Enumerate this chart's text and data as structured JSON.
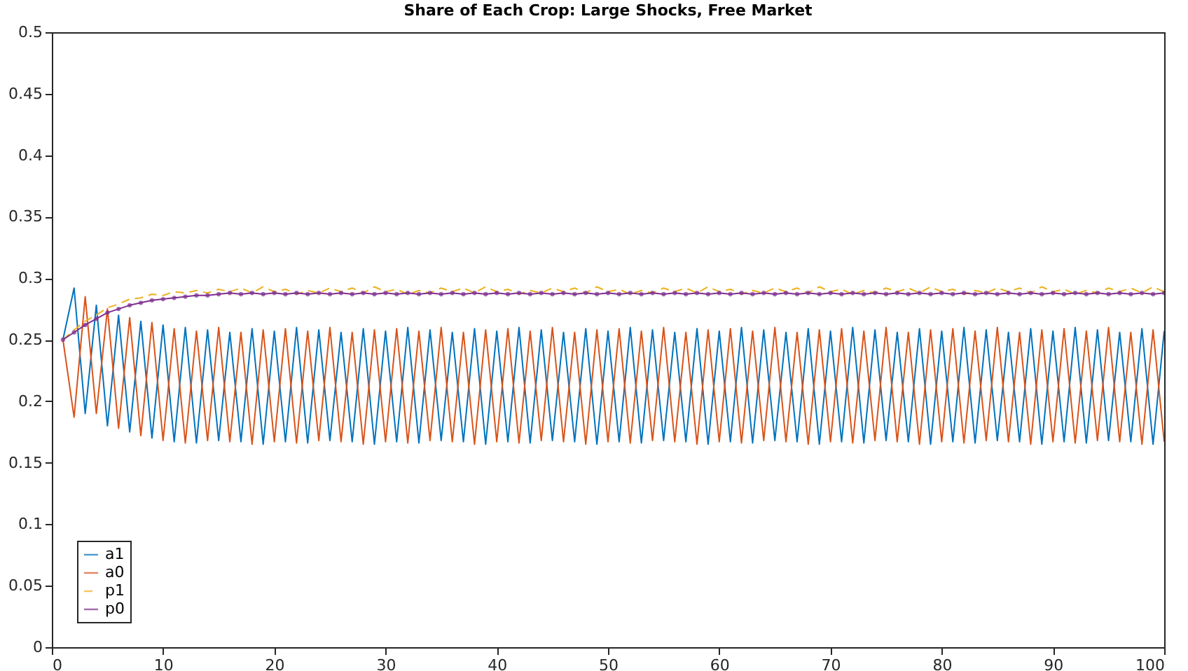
{
  "chart_data": {
    "type": "line",
    "title": "Share of Each Crop: Large Shocks, Free Market",
    "x": [
      1,
      2,
      3,
      4,
      5,
      6,
      7,
      8,
      9,
      10,
      11,
      12,
      13,
      14,
      15,
      16,
      17,
      18,
      19,
      20,
      21,
      22,
      23,
      24,
      25,
      26,
      27,
      28,
      29,
      30,
      31,
      32,
      33,
      34,
      35,
      36,
      37,
      38,
      39,
      40,
      41,
      42,
      43,
      44,
      45,
      46,
      47,
      48,
      49,
      50,
      51,
      52,
      53,
      54,
      55,
      56,
      57,
      58,
      59,
      60,
      61,
      62,
      63,
      64,
      65,
      66,
      67,
      68,
      69,
      70,
      71,
      72,
      73,
      74,
      75,
      76,
      77,
      78,
      79,
      80,
      81,
      82,
      83,
      84,
      85,
      86,
      87,
      88,
      89,
      90,
      91,
      92,
      93,
      94,
      95,
      96,
      97,
      98,
      99,
      100
    ],
    "series": [
      {
        "name": "a1",
        "color": "#0072bd",
        "line_style": "solid",
        "values": [
          0.25,
          0.292,
          0.19,
          0.278,
          0.18,
          0.27,
          0.175,
          0.265,
          0.17,
          0.262,
          0.167,
          0.26,
          0.166,
          0.258,
          0.168,
          0.256,
          0.167,
          0.259,
          0.165,
          0.257,
          0.167,
          0.26,
          0.166,
          0.258,
          0.168,
          0.256,
          0.167,
          0.259,
          0.165,
          0.257,
          0.167,
          0.26,
          0.166,
          0.258,
          0.168,
          0.256,
          0.167,
          0.259,
          0.165,
          0.257,
          0.167,
          0.26,
          0.166,
          0.258,
          0.168,
          0.256,
          0.167,
          0.259,
          0.165,
          0.257,
          0.167,
          0.26,
          0.166,
          0.258,
          0.168,
          0.256,
          0.167,
          0.259,
          0.165,
          0.257,
          0.167,
          0.26,
          0.166,
          0.258,
          0.168,
          0.256,
          0.167,
          0.259,
          0.165,
          0.257,
          0.167,
          0.26,
          0.166,
          0.258,
          0.168,
          0.256,
          0.167,
          0.259,
          0.165,
          0.257,
          0.167,
          0.26,
          0.166,
          0.258,
          0.168,
          0.256,
          0.167,
          0.259,
          0.165,
          0.257,
          0.167,
          0.26,
          0.166,
          0.258,
          0.168,
          0.256,
          0.167,
          0.259,
          0.165,
          0.257
        ]
      },
      {
        "name": "a0",
        "color": "#d95319",
        "line_style": "solid",
        "values": [
          0.25,
          0.187,
          0.285,
          0.19,
          0.275,
          0.178,
          0.268,
          0.172,
          0.264,
          0.168,
          0.259,
          0.166,
          0.257,
          0.168,
          0.26,
          0.167,
          0.256,
          0.165,
          0.258,
          0.167,
          0.259,
          0.166,
          0.257,
          0.168,
          0.26,
          0.167,
          0.256,
          0.165,
          0.258,
          0.167,
          0.259,
          0.166,
          0.257,
          0.168,
          0.26,
          0.167,
          0.256,
          0.165,
          0.258,
          0.167,
          0.259,
          0.166,
          0.257,
          0.168,
          0.26,
          0.167,
          0.256,
          0.165,
          0.258,
          0.167,
          0.259,
          0.166,
          0.257,
          0.168,
          0.26,
          0.167,
          0.256,
          0.165,
          0.258,
          0.167,
          0.259,
          0.166,
          0.257,
          0.168,
          0.26,
          0.167,
          0.256,
          0.165,
          0.258,
          0.167,
          0.259,
          0.166,
          0.257,
          0.168,
          0.26,
          0.167,
          0.256,
          0.165,
          0.258,
          0.167,
          0.259,
          0.166,
          0.257,
          0.168,
          0.26,
          0.167,
          0.256,
          0.165,
          0.258,
          0.167,
          0.259,
          0.166,
          0.257,
          0.168,
          0.26,
          0.167,
          0.256,
          0.165,
          0.258,
          0.167
        ]
      },
      {
        "name": "p1",
        "color": "#edb120",
        "line_style": "dashed",
        "marker": "none",
        "values": [
          0.25,
          0.258,
          0.265,
          0.27,
          0.276,
          0.279,
          0.283,
          0.284,
          0.287,
          0.286,
          0.289,
          0.288,
          0.29,
          0.288,
          0.291,
          0.289,
          0.292,
          0.288,
          0.293,
          0.289,
          0.291,
          0.287,
          0.29,
          0.288,
          0.292,
          0.289,
          0.292,
          0.288,
          0.293,
          0.289,
          0.291,
          0.287,
          0.29,
          0.288,
          0.292,
          0.289,
          0.292,
          0.288,
          0.293,
          0.289,
          0.291,
          0.287,
          0.29,
          0.288,
          0.292,
          0.289,
          0.292,
          0.288,
          0.293,
          0.289,
          0.291,
          0.287,
          0.29,
          0.288,
          0.292,
          0.289,
          0.292,
          0.288,
          0.293,
          0.289,
          0.291,
          0.287,
          0.29,
          0.288,
          0.292,
          0.289,
          0.292,
          0.288,
          0.293,
          0.289,
          0.291,
          0.287,
          0.29,
          0.288,
          0.292,
          0.289,
          0.292,
          0.288,
          0.293,
          0.289,
          0.291,
          0.287,
          0.29,
          0.288,
          0.292,
          0.289,
          0.292,
          0.288,
          0.293,
          0.289,
          0.291,
          0.287,
          0.29,
          0.288,
          0.292,
          0.289,
          0.292,
          0.288,
          0.293,
          0.289
        ]
      },
      {
        "name": "p0",
        "color": "#7e2f8e",
        "line_style": "solid",
        "marker": "circle",
        "values": [
          0.25,
          0.256,
          0.262,
          0.267,
          0.272,
          0.275,
          0.278,
          0.28,
          0.282,
          0.283,
          0.284,
          0.285,
          0.286,
          0.286,
          0.287,
          0.288,
          0.287,
          0.288,
          0.287,
          0.288,
          0.287,
          0.288,
          0.287,
          0.288,
          0.287,
          0.288,
          0.287,
          0.288,
          0.287,
          0.288,
          0.287,
          0.288,
          0.287,
          0.288,
          0.287,
          0.288,
          0.287,
          0.288,
          0.287,
          0.288,
          0.287,
          0.288,
          0.287,
          0.288,
          0.287,
          0.288,
          0.287,
          0.288,
          0.287,
          0.288,
          0.287,
          0.288,
          0.287,
          0.288,
          0.287,
          0.288,
          0.287,
          0.288,
          0.287,
          0.288,
          0.287,
          0.288,
          0.287,
          0.288,
          0.287,
          0.288,
          0.287,
          0.288,
          0.287,
          0.288,
          0.287,
          0.288,
          0.287,
          0.288,
          0.287,
          0.288,
          0.287,
          0.288,
          0.287,
          0.288,
          0.287,
          0.288,
          0.287,
          0.288,
          0.287,
          0.288,
          0.287,
          0.288,
          0.287,
          0.288,
          0.287,
          0.288,
          0.287,
          0.288,
          0.287,
          0.288,
          0.287,
          0.288,
          0.287,
          0.288
        ]
      }
    ],
    "xlim": [
      0,
      100
    ],
    "xticks": [
      0,
      10,
      20,
      30,
      40,
      50,
      60,
      70,
      80,
      90,
      100
    ],
    "ylim": [
      0,
      0.5
    ],
    "yticks": [
      0,
      0.05,
      0.1,
      0.15,
      0.2,
      0.25,
      0.3,
      0.35,
      0.4,
      0.45,
      0.5
    ],
    "grid": false,
    "legend": "bottom left"
  }
}
